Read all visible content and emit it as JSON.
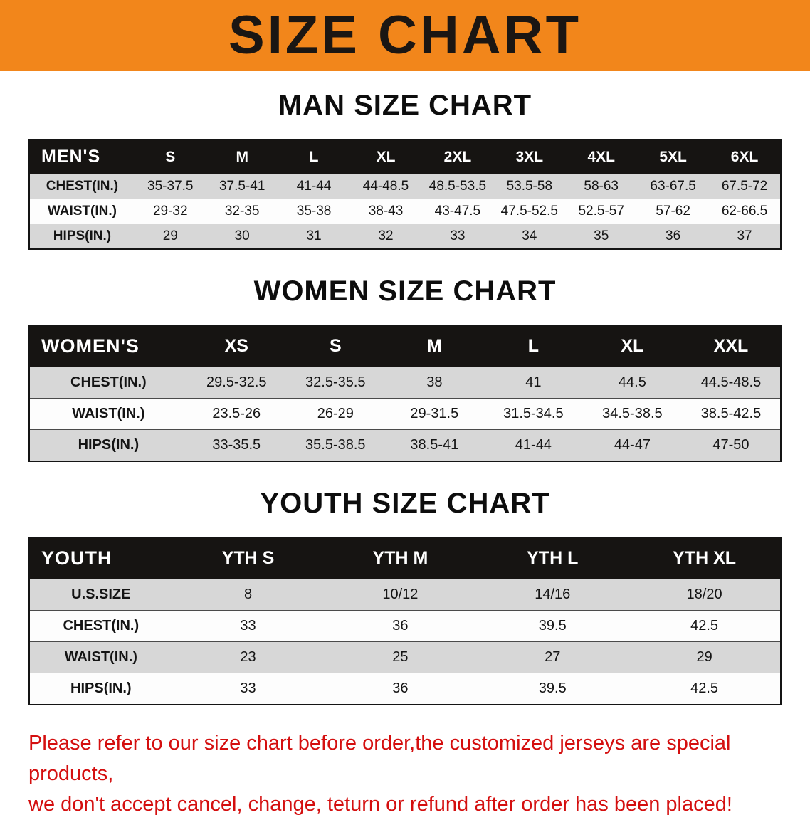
{
  "banner": {
    "title": "SIZE CHART",
    "bg_color": "#f2861b"
  },
  "sections": [
    {
      "heading": "MAN SIZE CHART",
      "table": {
        "header": [
          "MEN'S",
          "S",
          "M",
          "L",
          "XL",
          "2XL",
          "3XL",
          "4XL",
          "5XL",
          "6XL"
        ],
        "rows": [
          [
            "CHEST(IN.)",
            "35-37.5",
            "37.5-41",
            "41-44",
            "44-48.5",
            "48.5-53.5",
            "53.5-58",
            "58-63",
            "63-67.5",
            "67.5-72"
          ],
          [
            "WAIST(IN.)",
            "29-32",
            "32-35",
            "35-38",
            "38-43",
            "43-47.5",
            "47.5-52.5",
            "52.5-57",
            "57-62",
            "62-66.5"
          ],
          [
            "HIPS(IN.)",
            "29",
            "30",
            "31",
            "32",
            "33",
            "34",
            "35",
            "36",
            "37"
          ]
        ]
      }
    },
    {
      "heading": "WOMEN SIZE CHART",
      "table": {
        "header": [
          "WOMEN'S",
          "XS",
          "S",
          "M",
          "L",
          "XL",
          "XXL"
        ],
        "rows": [
          [
            "CHEST(IN.)",
            "29.5-32.5",
            "32.5-35.5",
            "38",
            "41",
            "44.5",
            "44.5-48.5"
          ],
          [
            "WAIST(IN.)",
            "23.5-26",
            "26-29",
            "29-31.5",
            "31.5-34.5",
            "34.5-38.5",
            "38.5-42.5"
          ],
          [
            "HIPS(IN.)",
            "33-35.5",
            "35.5-38.5",
            "38.5-41",
            "41-44",
            "44-47",
            "47-50"
          ]
        ]
      }
    },
    {
      "heading": "YOUTH SIZE CHART",
      "table": {
        "header": [
          "YOUTH",
          "YTH S",
          "YTH M",
          "YTH L",
          "YTH XL"
        ],
        "rows": [
          [
            "U.S.SIZE",
            "8",
            "10/12",
            "14/16",
            "18/20"
          ],
          [
            "CHEST(IN.)",
            "33",
            "36",
            "39.5",
            "42.5"
          ],
          [
            "WAIST(IN.)",
            "23",
            "25",
            "27",
            "29"
          ],
          [
            "HIPS(IN.)",
            "33",
            "36",
            "39.5",
            "42.5"
          ]
        ]
      }
    }
  ],
  "footer": {
    "line1": "Please refer to our size chart before order,the customized jerseys are special products,",
    "line2": "we don't accept cancel, change, teturn or refund after order has been placed!",
    "text_color": "#d40f0f"
  }
}
